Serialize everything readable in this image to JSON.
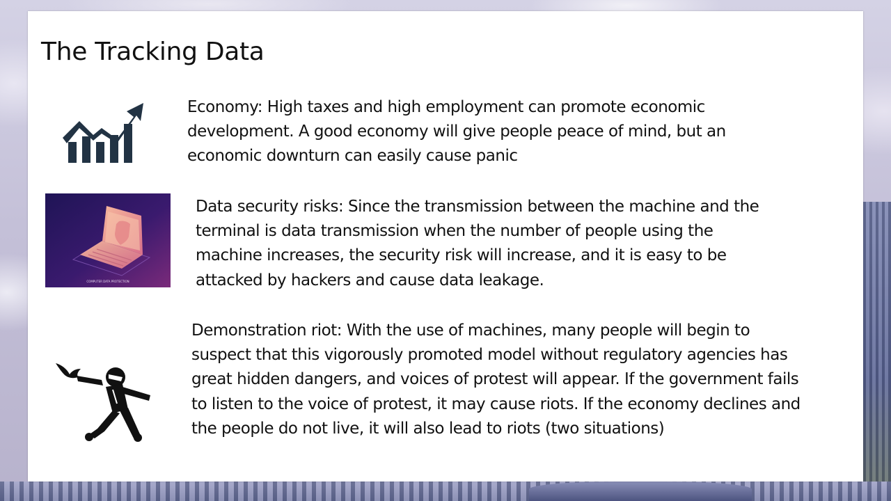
{
  "slide": {
    "title": "The Tracking Data",
    "items": [
      {
        "icon": "rising-chart-icon",
        "text": "Economy: High taxes and high employment can promote economic development. A good economy will give people peace of mind, but an economic downturn can easily cause panic"
      },
      {
        "icon": "laptop-security-icon",
        "image_caption": "COMPUTER DATA PROTECTION",
        "text": "Data security risks: Since the transmission between the machine and the terminal is data transmission when the number of people using the machine increases, the security risk will increase, and it is easy to be attacked by hackers and cause data leakage."
      },
      {
        "icon": "rioter-throwing-icon",
        "text": "Demonstration riot: With the use of machines, many people will begin to suspect that this vigorously promoted model without regulatory agencies has great hidden dangers, and voices of protest will appear. If the government fails to listen to the voice of protest, it may cause riots. If the economy declines and the people do not live, it will also lead to riots (two situations)"
      }
    ]
  },
  "colors": {
    "icon_dark": "#223344",
    "laptop_bg": "#3a1a6e",
    "laptop_accent": "#f2a48a"
  }
}
